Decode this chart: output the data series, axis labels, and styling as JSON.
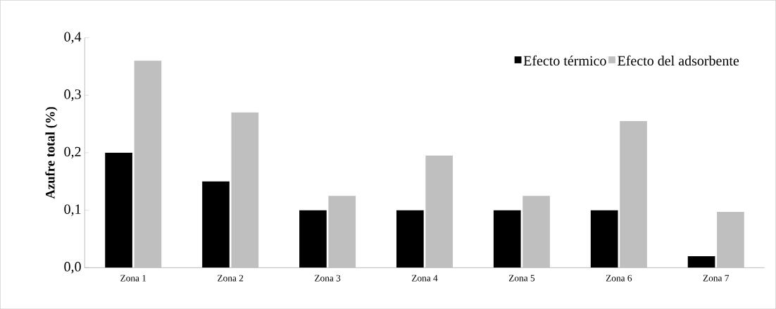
{
  "chart_data": {
    "type": "bar",
    "ylabel": "Azufre total (%)",
    "categories": [
      "Zona 1",
      "Zona 2",
      "Zona 3",
      "Zona 4",
      "Zona 5",
      "Zona 6",
      "Zona 7"
    ],
    "series": [
      {
        "name": "Efecto térmico",
        "color": "#000000",
        "values": [
          0.2,
          0.15,
          0.1,
          0.1,
          0.1,
          0.1,
          0.02
        ]
      },
      {
        "name": "Efecto del adsorbente",
        "color": "#bfbfbf",
        "values": [
          0.36,
          0.27,
          0.125,
          0.195,
          0.125,
          0.255,
          0.097
        ]
      }
    ],
    "ylim": [
      0,
      0.4
    ],
    "yticks": [
      {
        "value": 0,
        "label": "0,0"
      },
      {
        "value": 0.1,
        "label": "0,1"
      },
      {
        "value": 0.2,
        "label": "0,2"
      },
      {
        "value": 0.3,
        "label": "0,3"
      },
      {
        "value": 0.4,
        "label": "0,4"
      }
    ],
    "legend": "top right",
    "grid": false
  }
}
